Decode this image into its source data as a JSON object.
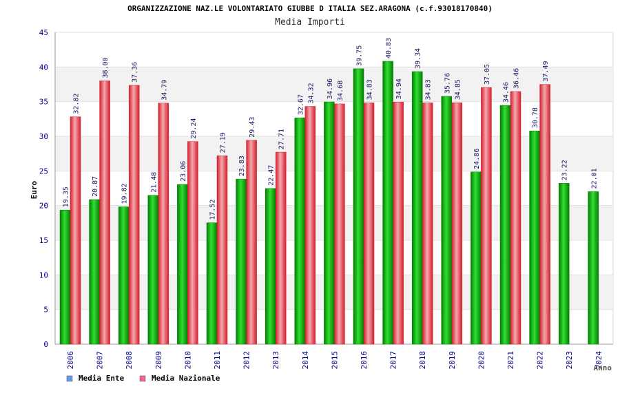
{
  "colors": {
    "ente_dark": "#008000",
    "ente_light": "#33dd33",
    "nazionale_dark": "#d41e2c",
    "nazionale_light": "#f4a8ae",
    "band": "#f2f2f2",
    "axis_text": "#00008b",
    "legend_ente": "#6699ee",
    "legend_nazionale": "#ee6699"
  },
  "chart_data": {
    "type": "bar",
    "title": "ORGANIZZAZIONE NAZ.LE VOLONTARIATO GIUBBE D ITALIA SEZ.ARAGONA (c.f.93018170840)",
    "subtitle": "Media Importi",
    "xlabel": "Anno",
    "ylabel": "Euro",
    "ylim": [
      0,
      45
    ],
    "yticks": [
      0,
      5,
      10,
      15,
      20,
      25,
      30,
      35,
      40,
      45
    ],
    "categories": [
      "2006",
      "2007",
      "2008",
      "2009",
      "2010",
      "2011",
      "2012",
      "2013",
      "2014",
      "2015",
      "2016",
      "2017",
      "2018",
      "2019",
      "2020",
      "2021",
      "2022",
      "2023",
      "2024"
    ],
    "series": [
      {
        "name": "Media Ente",
        "values": [
          19.35,
          20.87,
          19.82,
          21.48,
          23.06,
          17.52,
          23.83,
          22.47,
          32.67,
          34.96,
          39.75,
          40.83,
          39.34,
          35.76,
          24.86,
          34.46,
          30.78,
          23.22,
          22.01
        ],
        "labels": [
          "19.35",
          "20.87",
          "19.82",
          "21.48",
          "23.06",
          "17.52",
          "23.83",
          "22.47",
          "32.67",
          "34.96",
          "39.75",
          "40.83",
          "39.34",
          "35.76",
          "24.86",
          "34.46",
          "30.78",
          "23.22",
          "22.01"
        ]
      },
      {
        "name": "Media Nazionale",
        "values": [
          32.82,
          38.0,
          37.36,
          34.79,
          29.24,
          27.19,
          29.43,
          27.71,
          34.32,
          34.68,
          34.83,
          34.94,
          34.83,
          34.85,
          37.05,
          36.46,
          37.49,
          null,
          null
        ],
        "labels": [
          "32.82",
          "38.00",
          "37.36",
          "34.79",
          "29.24",
          "27.19",
          "29.43",
          "27.71",
          "34.32",
          "34.68",
          "34.83",
          "34.94",
          "34.83",
          "34.85",
          "37.05",
          "36.46",
          "37.49",
          null,
          null
        ]
      }
    ],
    "legend": [
      "Media Ente",
      "Media Nazionale"
    ]
  }
}
